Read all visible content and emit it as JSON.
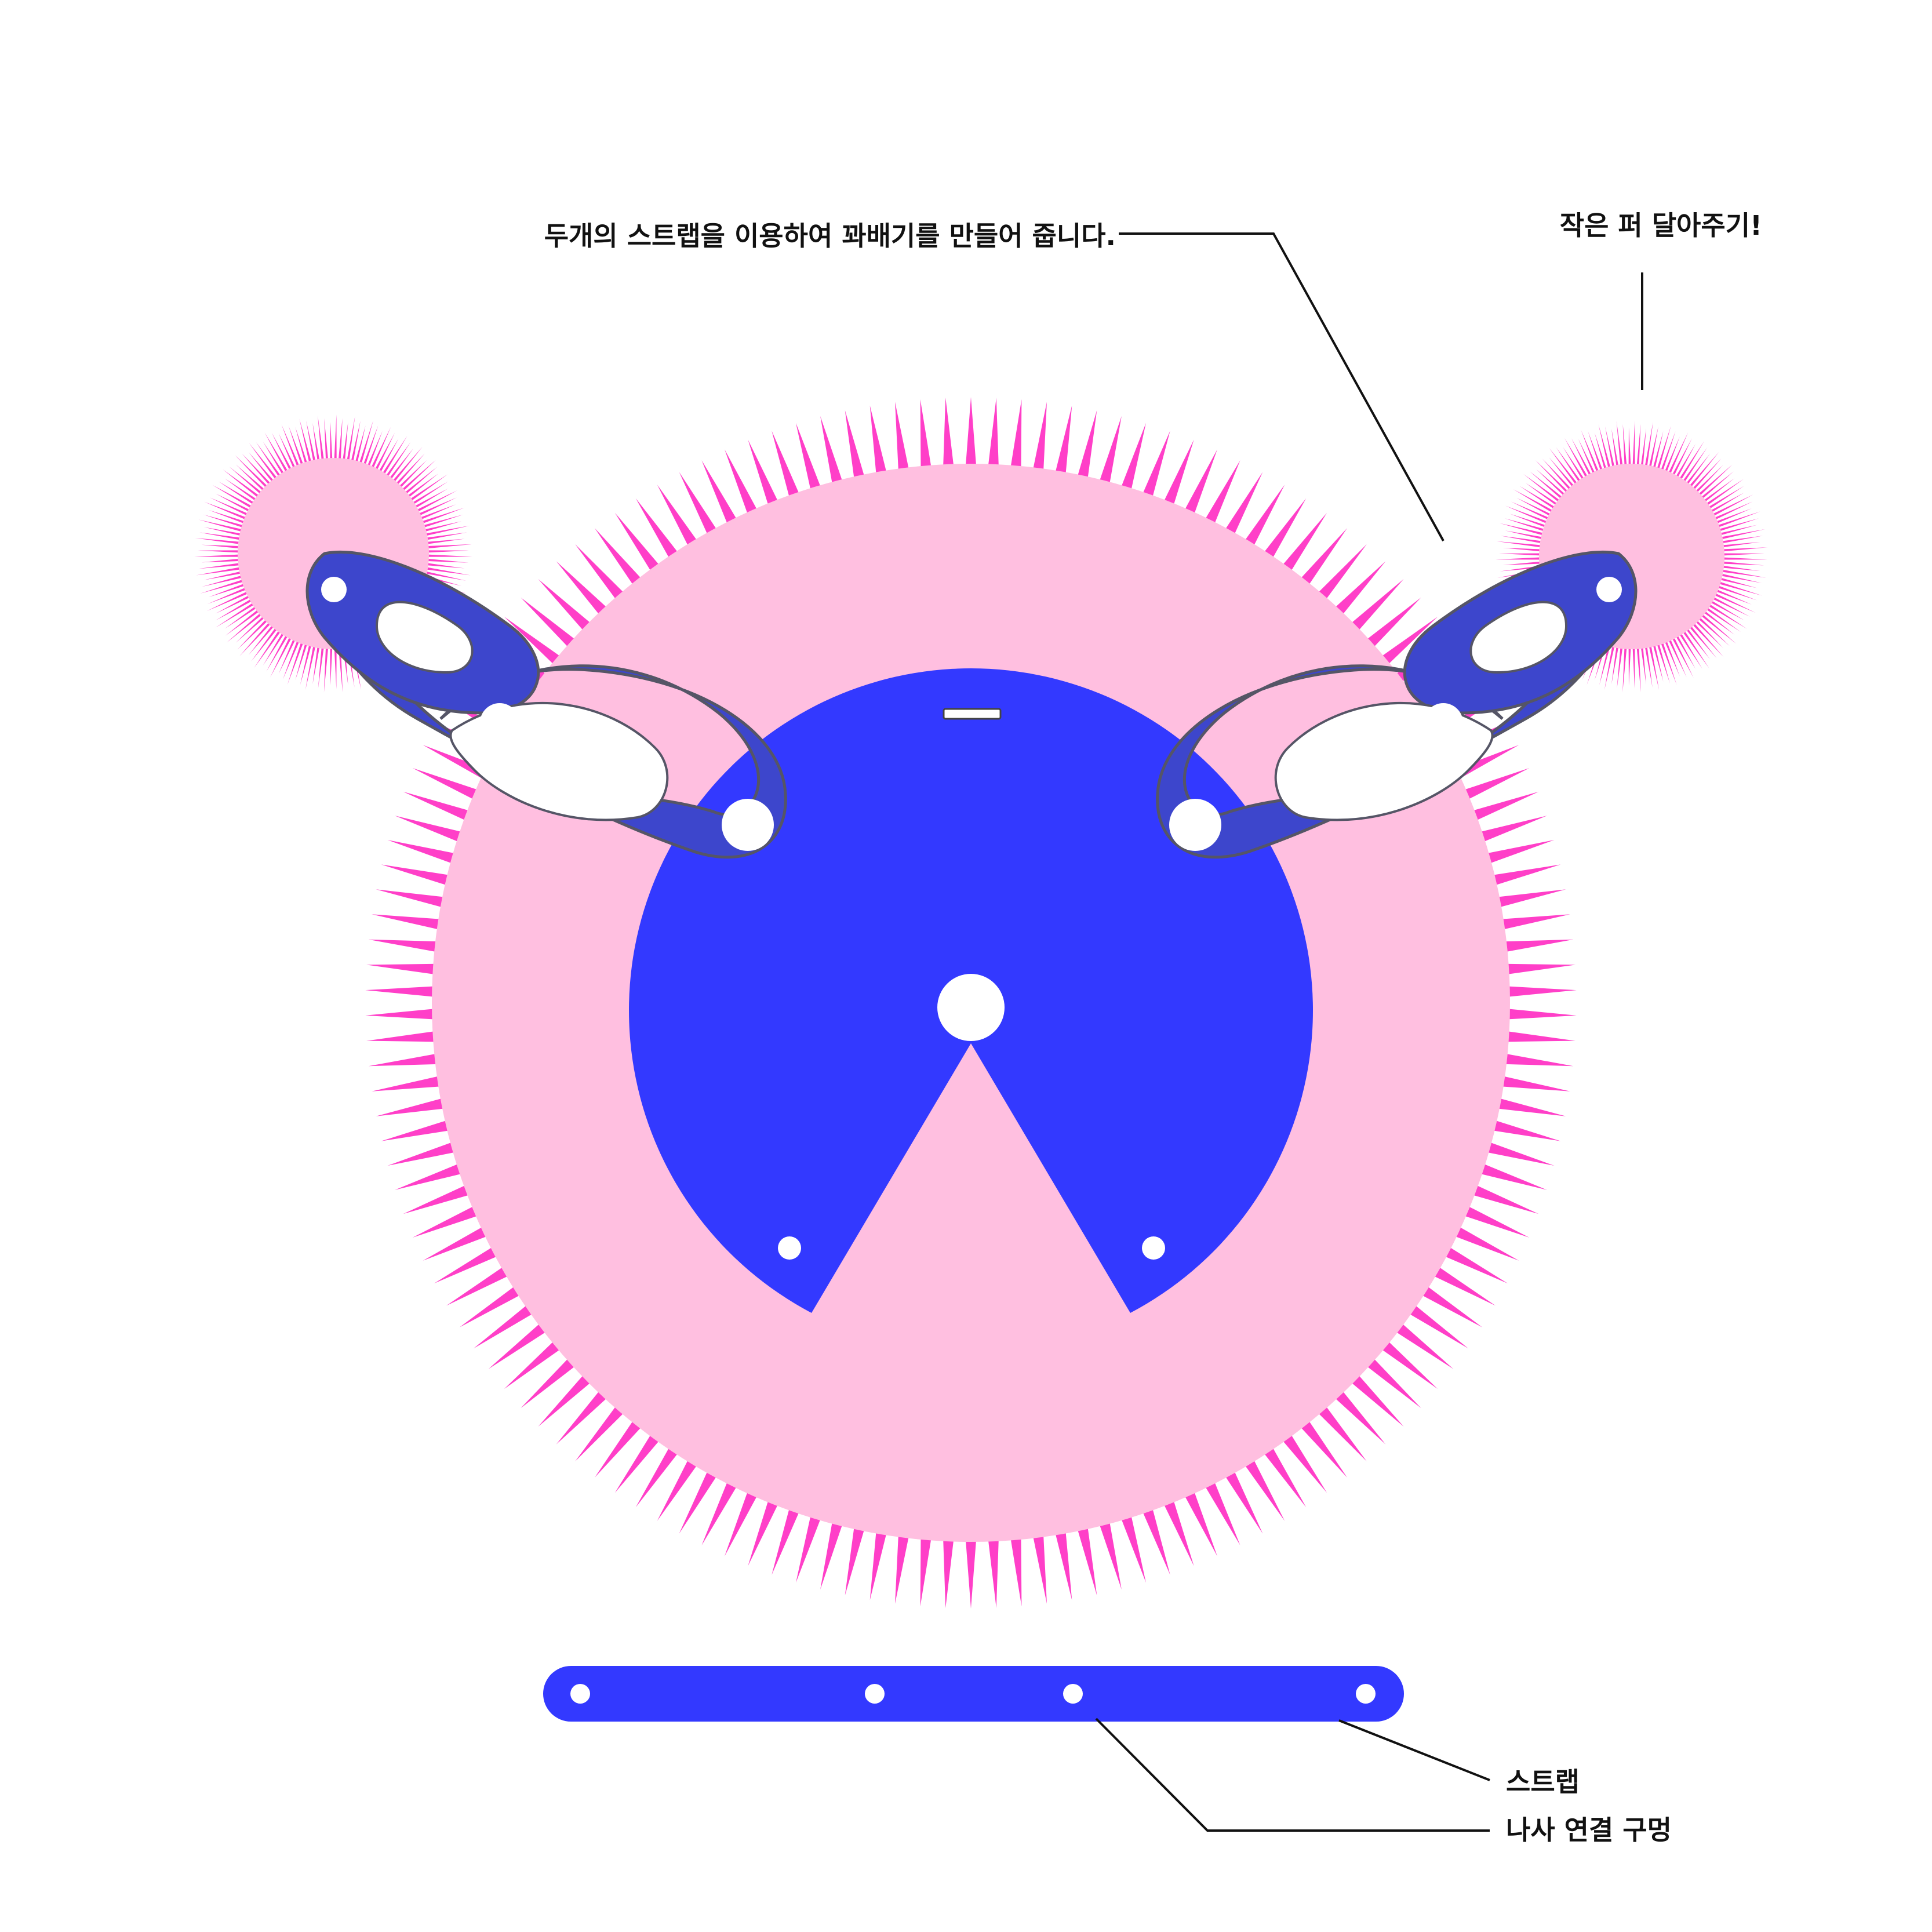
{
  "annotations": {
    "twist_instruction": "두개의 스트랩을 이용하여 꽈배기를 만들어 줍니다.",
    "small_fur": "작은 퍼 달아주기!",
    "strap": "스트랩",
    "screw_hole": "나사 연결 구멍"
  },
  "colors": {
    "background": "#ffffff",
    "fur_spike": "#ff3fc8",
    "fur_base": "#ffbfe0",
    "part_blue": "#3339ff",
    "strap_twist_fill": "#3d46cc",
    "strap_twist_outline": "#555566",
    "hole": "#ffffff",
    "line": "#111111"
  },
  "icons": {
    "big_fur": "pink-spiky-fur-circle",
    "small_fur": "small-pink-fur-pompom",
    "hood_base": "blue-disc-with-wedge-cutout",
    "twisted_strap": "twisted-strap-loop",
    "flat_strap": "flat-strap-with-holes"
  }
}
